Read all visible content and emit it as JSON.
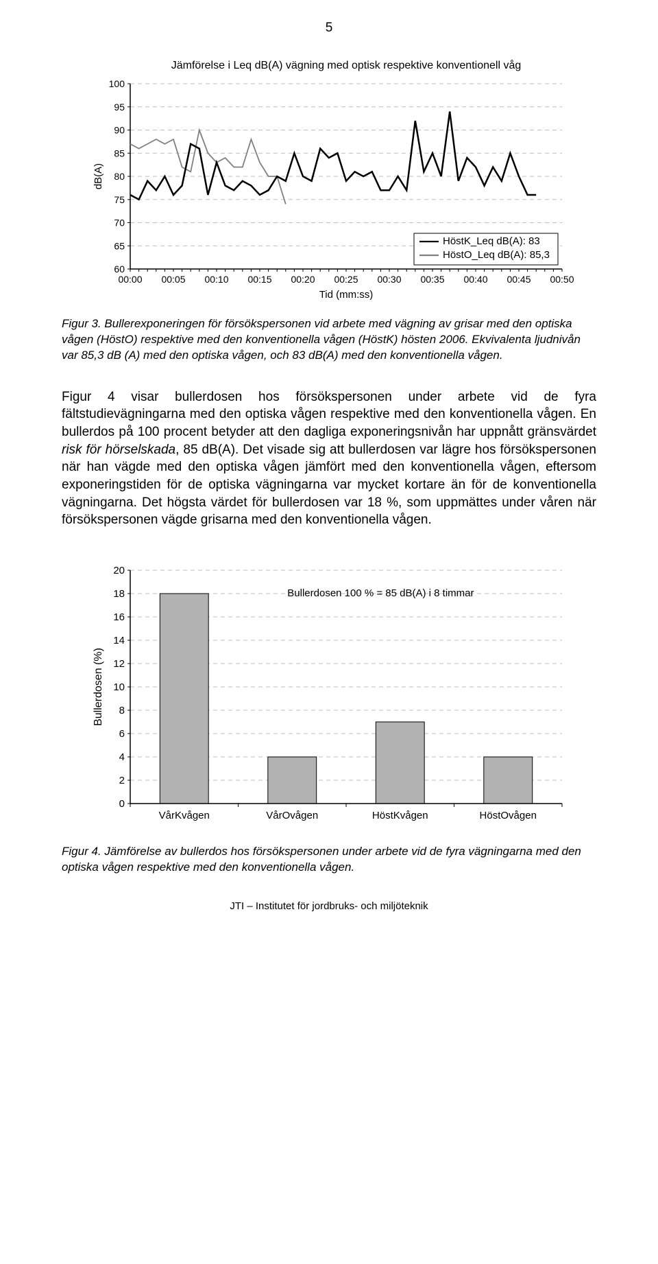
{
  "page_number": "5",
  "line_chart": {
    "type": "line",
    "title": "Jämförelse i Leq dB(A) vägning med optisk respektive konventionell våg",
    "title_fontsize": 16,
    "ylabel": "dB(A)",
    "xlabel": "Tid (mm:ss)",
    "label_fontsize": 15,
    "ylim": [
      60,
      100
    ],
    "ytick_step": 5,
    "yticks": [
      "60",
      "65",
      "70",
      "75",
      "80",
      "85",
      "90",
      "95",
      "100"
    ],
    "xticks": [
      "00:00",
      "00:05",
      "00:10",
      "00:15",
      "00:20",
      "00:25",
      "00:30",
      "00:35",
      "00:40",
      "00:45",
      "00:50"
    ],
    "tick_fontsize": 14,
    "grid_color": "#bfbfbf",
    "axis_color": "#000000",
    "background_color": "#ffffff",
    "line_width_k": 2.5,
    "line_width_o": 1.8,
    "legend": {
      "items": [
        {
          "label": "HöstK_Leq dB(A): 83",
          "color": "#000000"
        },
        {
          "label": "HöstO_Leq dB(A): 85,3",
          "color": "#808080"
        }
      ],
      "border_color": "#000000",
      "fontsize": 15,
      "position": "right-lower"
    },
    "series_k": {
      "color": "#000000",
      "points": [
        [
          0,
          76
        ],
        [
          1,
          75
        ],
        [
          2,
          79
        ],
        [
          3,
          77
        ],
        [
          4,
          80
        ],
        [
          5,
          76
        ],
        [
          6,
          78
        ],
        [
          7,
          87
        ],
        [
          8,
          86
        ],
        [
          9,
          76
        ],
        [
          10,
          83
        ],
        [
          11,
          78
        ],
        [
          12,
          77
        ],
        [
          13,
          79
        ],
        [
          14,
          78
        ],
        [
          15,
          76
        ],
        [
          16,
          77
        ],
        [
          17,
          80
        ],
        [
          18,
          79
        ],
        [
          19,
          85
        ],
        [
          20,
          80
        ],
        [
          21,
          79
        ],
        [
          22,
          86
        ],
        [
          23,
          84
        ],
        [
          24,
          85
        ],
        [
          25,
          79
        ],
        [
          26,
          81
        ],
        [
          27,
          80
        ],
        [
          28,
          81
        ],
        [
          29,
          77
        ],
        [
          30,
          77
        ],
        [
          31,
          80
        ],
        [
          32,
          77
        ],
        [
          33,
          92
        ],
        [
          34,
          81
        ],
        [
          35,
          85
        ],
        [
          36,
          80
        ],
        [
          37,
          94
        ],
        [
          38,
          79
        ],
        [
          39,
          84
        ],
        [
          40,
          82
        ],
        [
          41,
          78
        ],
        [
          42,
          82
        ],
        [
          43,
          79
        ],
        [
          44,
          85
        ],
        [
          45,
          80
        ],
        [
          46,
          76
        ],
        [
          47,
          76
        ]
      ]
    },
    "series_o": {
      "color": "#808080",
      "points": [
        [
          0,
          87
        ],
        [
          1,
          86
        ],
        [
          2,
          87
        ],
        [
          3,
          88
        ],
        [
          4,
          87
        ],
        [
          5,
          88
        ],
        [
          6,
          82
        ],
        [
          7,
          81
        ],
        [
          8,
          90
        ],
        [
          9,
          85
        ],
        [
          10,
          83
        ],
        [
          11,
          84
        ],
        [
          12,
          82
        ],
        [
          13,
          82
        ],
        [
          14,
          88
        ],
        [
          15,
          83
        ],
        [
          16,
          80
        ],
        [
          17,
          80
        ],
        [
          18,
          74
        ]
      ]
    }
  },
  "caption1_a": "Figur 3. Bullerexponeringen för försökspersonen vid arbete med vägning av grisar med den optiska vågen (HöstO) respektive med den konventionella vågen (HöstK) hösten 2006. Ekvivalenta ljudnivån var 85,3 dB (A) med den optiska vågen, och 83 dB(A) med den konventionella vågen.",
  "body_a": "Figur 4 visar bullerdosen hos försökspersonen under arbete vid de fyra fältstudievägningarna med den optiska vågen respektive med den konventionella vågen. En bullerdos på 100 procent betyder att den dagliga exponeringsnivån har uppnått gränsvärdet ",
  "body_ital": "risk för hörselskada",
  "body_b": ", 85 dB(A). Det visade sig att bullerdosen var lägre hos försökspersonen när han vägde med den optiska vågen jämfört med den konventionella vågen, eftersom exponeringstiden för de optiska vägningarna var mycket kortare än för de konventionella vägningarna. Det högsta värdet för bullerdosen var 18 %, som uppmättes under våren när försökspersonen vägde grisarna med den konventionella vågen.",
  "bar_chart": {
    "type": "bar",
    "ylabel": "Bullerdosen (%)",
    "label_fontsize": 16,
    "annotation": "Bullerdosen 100 % = 85 dB(A) i 8 timmar",
    "annotation_fontsize": 15,
    "ylim": [
      0,
      20
    ],
    "ytick_step": 2,
    "yticks": [
      "0",
      "2",
      "4",
      "6",
      "8",
      "10",
      "12",
      "14",
      "16",
      "18",
      "20"
    ],
    "categories": [
      "VårKvågen",
      "VårOvågen",
      "HöstKvågen",
      "HöstOvågen"
    ],
    "values": [
      18,
      4,
      7,
      4
    ],
    "bar_color": "#b2b2b2",
    "bar_border": "#000000",
    "bar_width": 0.45,
    "grid_color": "#bfbfbf",
    "axis_color": "#000000",
    "tick_fontsize": 15
  },
  "caption2": "Figur 4. Jämförelse av bullerdos hos försökspersonen under arbete vid de fyra vägningarna med den optiska vågen respektive med den konventionella vågen.",
  "footer": "JTI – Institutet för jordbruks- och miljöteknik"
}
